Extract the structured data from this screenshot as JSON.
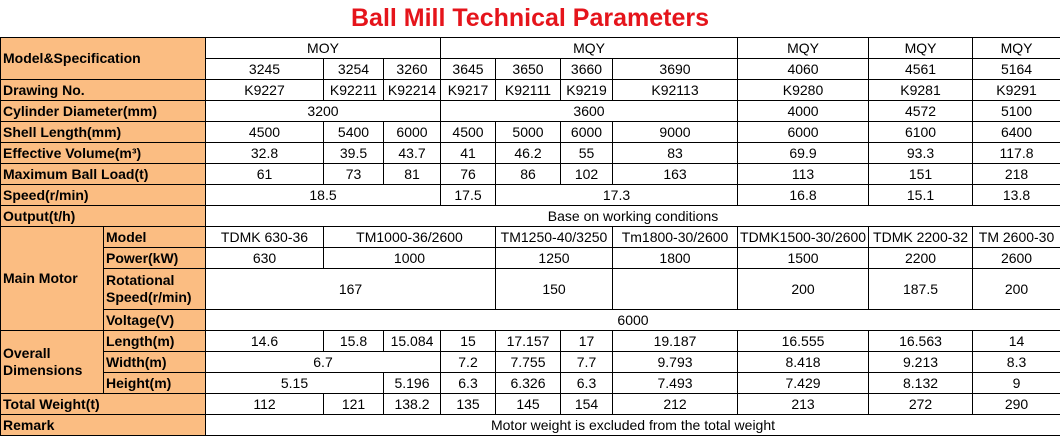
{
  "title": "Ball Mill Technical Parameters",
  "header": {
    "label": "Model&Specification",
    "groups": [
      "MOY",
      "MQY",
      "MQY",
      "MQY",
      "MQY"
    ],
    "models": [
      "3245",
      "3254",
      "3260",
      "3645",
      "3650",
      "3660",
      "3690",
      "4060",
      "4561",
      "5164"
    ]
  },
  "sections": [
    {
      "label": "Drawing No.",
      "cells": [
        "K9227",
        "K92211",
        "K92214",
        "K9217",
        "K92111",
        "K9219",
        "K92113",
        "K9280",
        "K9281",
        "K9291"
      ]
    },
    {
      "label": "Cylinder Diameter(mm)",
      "cells": [
        "3200",
        "3600",
        "4000",
        "4572",
        "5100"
      ]
    },
    {
      "label": "Shell Length(mm)",
      "cells": [
        "4500",
        "5400",
        "6000",
        "4500",
        "5000",
        "6000",
        "9000",
        "6000",
        "6100",
        "6400"
      ]
    },
    {
      "label": "Effective Volume(m³)",
      "cells": [
        "32.8",
        "39.5",
        "43.7",
        "41",
        "46.2",
        "55",
        "83",
        "69.9",
        "93.3",
        "117.8"
      ]
    },
    {
      "label": "Maximum Ball Load(t)",
      "cells": [
        "61",
        "73",
        "81",
        "76",
        "86",
        "102",
        "163",
        "113",
        "151",
        "218"
      ]
    },
    {
      "label": "Speed(r/min)",
      "cells": [
        "18.5",
        "17.5",
        "17.3",
        "16.8",
        "15.1",
        "13.8"
      ]
    },
    {
      "label": "Output(t/h)",
      "cells": [
        "Base on working conditions"
      ]
    },
    {
      "label": "Main Motor",
      "rows": [
        {
          "label": "Model",
          "cells": [
            "TDMK 630-36",
            "TM1000-36/2600",
            "TM1250-40/3250",
            "Tm1800-30/2600",
            "TDMK1500-30/2600",
            "TDMK 2200-32",
            "TM 2600-30"
          ]
        },
        {
          "label": "Power(kW)",
          "cells": [
            "630",
            "1000",
            "1250",
            "1800",
            "1500",
            "2200",
            "2600"
          ]
        },
        {
          "label": "Rotational Speed(r/min)",
          "cells": [
            "167",
            "150",
            "200",
            "187.5",
            "200"
          ]
        },
        {
          "label": "Voltage(V)",
          "cells": [
            "6000"
          ]
        }
      ]
    },
    {
      "label": "Overall Dimensions",
      "rows": [
        {
          "label": "Length(m)",
          "cells": [
            "14.6",
            "15.8",
            "15.084",
            "15",
            "17.157",
            "17",
            "19.187",
            "16.555",
            "16.563",
            "14"
          ]
        },
        {
          "label": "Width(m)",
          "cells": [
            "6.7",
            "7.2",
            "7.755",
            "7.7",
            "9.793",
            "8.418",
            "9.213",
            "8.3"
          ]
        },
        {
          "label": "Height(m)",
          "cells": [
            "5.15",
            "5.196",
            "6.3",
            "6.326",
            "6.3",
            "7.493",
            "7.429",
            "8.132",
            "9"
          ]
        }
      ]
    },
    {
      "label": "Total Weight(t)",
      "cells": [
        "112",
        "121",
        "138.2",
        "135",
        "145",
        "154",
        "212",
        "213",
        "272",
        "290"
      ]
    },
    {
      "label": "Remark",
      "cells": [
        "Motor weight is excluded from the total weight"
      ]
    }
  ]
}
